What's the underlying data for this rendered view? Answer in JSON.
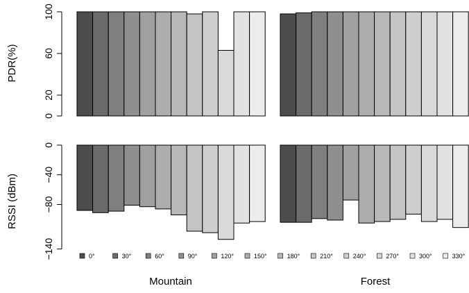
{
  "chart_data": {
    "type": "bar",
    "angles": [
      "0°",
      "30°",
      "60°",
      "90°",
      "120°",
      "150°",
      "180°",
      "210°",
      "240°",
      "270°",
      "300°",
      "330°"
    ],
    "colors": [
      "#4d4d4d",
      "#6b6b6b",
      "#7f7f7f",
      "#8f8f8f",
      "#a0a0a0",
      "#adadad",
      "#b8b8b8",
      "#c4c4c4",
      "#cfcfcf",
      "#d9d9d9",
      "#e2e2e2",
      "#ececec"
    ],
    "environments": [
      "Mountain",
      "Forest"
    ],
    "pdr": {
      "ylabel": "PDR(%)",
      "ylim": [
        0,
        100
      ],
      "ticks": [
        0,
        20,
        60,
        100
      ],
      "Mountain": [
        100,
        100,
        100,
        100,
        100,
        100,
        100,
        98,
        100,
        63,
        100,
        100
      ],
      "Forest": [
        98,
        99,
        100,
        100,
        100,
        100,
        100,
        100,
        100,
        100,
        100,
        100
      ]
    },
    "rssi": {
      "ylabel": "RSSI (dBm)",
      "ylim": [
        -145,
        0
      ],
      "ticks": [
        0,
        -40,
        -80,
        -140
      ],
      "Mountain": [
        -88,
        -91,
        -89,
        -81,
        -83,
        -86,
        -94,
        -116,
        -118,
        -127,
        -105,
        -103
      ],
      "Forest": [
        -104,
        -104,
        -99,
        -101,
        -74,
        -105,
        -103,
        -100,
        -93,
        -103,
        -100,
        -111
      ]
    }
  }
}
